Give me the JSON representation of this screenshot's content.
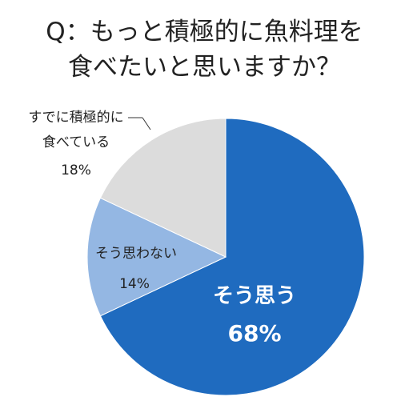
{
  "chart_data": {
    "type": "pie",
    "title": [
      "Q：もっと積極的に魚料理を",
      "食べたいと思いますか？"
    ],
    "slices": [
      {
        "label": "そう思う",
        "value": 68,
        "value_label": "68%",
        "color": "#1f6bbf"
      },
      {
        "label": "そう思わない",
        "value": 14,
        "value_label": "14%",
        "color": "#94b7e3"
      },
      {
        "label_lines": [
          "すでに積極的に",
          "食べている"
        ],
        "value": 18,
        "value_label": "18%",
        "color": "#dcdcdc"
      }
    ],
    "start": "12 o'clock",
    "direction": "clockwise"
  }
}
